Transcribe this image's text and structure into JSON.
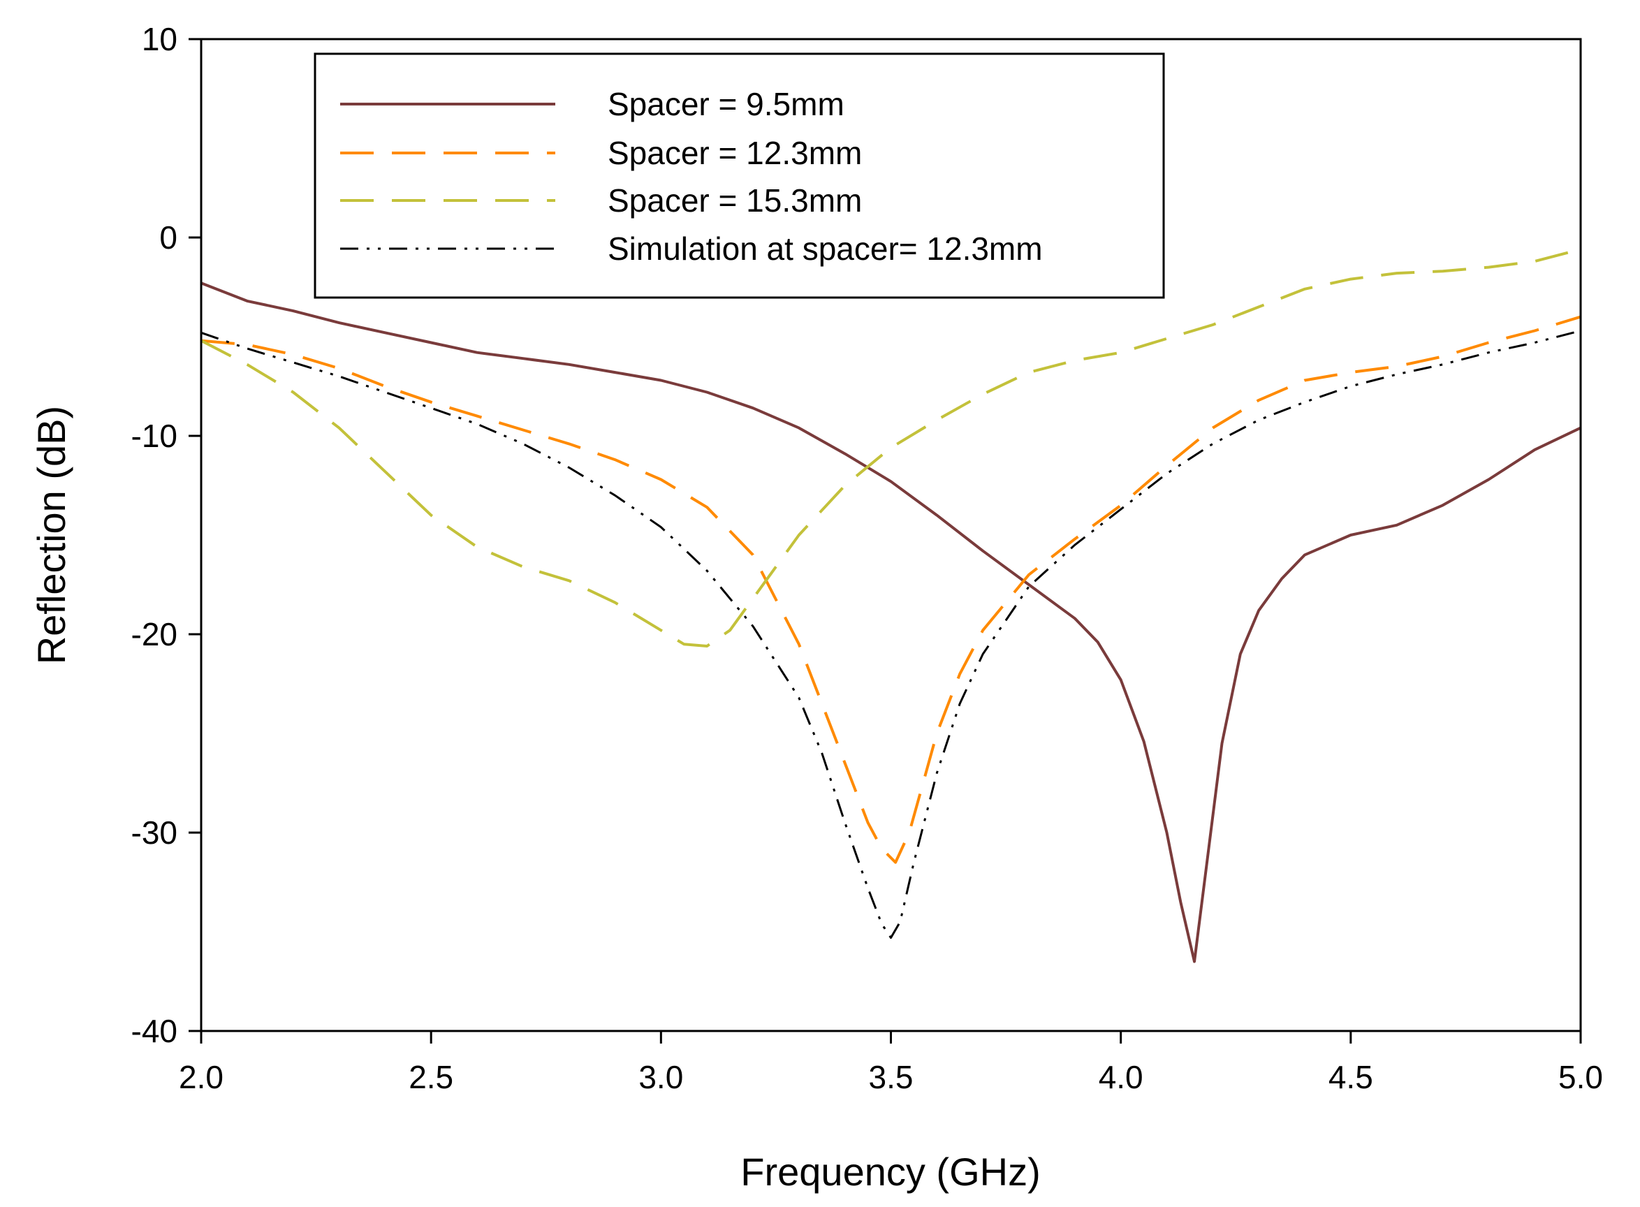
{
  "chart_data": {
    "type": "line",
    "title": "",
    "xlabel": "Frequency (GHz)",
    "ylabel": "Reflection (dB)",
    "xlim": [
      2.0,
      5.0
    ],
    "ylim": [
      -40,
      10
    ],
    "xticks": [
      2.0,
      2.5,
      3.0,
      3.5,
      4.0,
      4.5,
      5.0
    ],
    "xtick_labels": [
      "2.0",
      "2.5",
      "3.0",
      "3.5",
      "4.0",
      "4.5",
      "5.0"
    ],
    "yticks": [
      -40,
      -30,
      -20,
      -10,
      0,
      10
    ],
    "ytick_labels": [
      "-40",
      "-30",
      "-20",
      "-10",
      "0",
      "10"
    ],
    "grid": false,
    "legend_position": "top-center",
    "series": [
      {
        "name": "Spacer = 9.5mm",
        "color": "#7a3b3b",
        "style": "solid",
        "x": [
          2.0,
          2.1,
          2.2,
          2.3,
          2.4,
          2.5,
          2.6,
          2.7,
          2.8,
          2.9,
          3.0,
          3.1,
          3.2,
          3.3,
          3.4,
          3.5,
          3.6,
          3.7,
          3.8,
          3.9,
          3.95,
          4.0,
          4.05,
          4.1,
          4.13,
          4.16,
          4.19,
          4.22,
          4.26,
          4.3,
          4.35,
          4.4,
          4.5,
          4.6,
          4.7,
          4.8,
          4.9,
          5.0
        ],
        "y": [
          -2.3,
          -3.2,
          -3.7,
          -4.3,
          -4.8,
          -5.3,
          -5.8,
          -6.1,
          -6.4,
          -6.8,
          -7.2,
          -7.8,
          -8.6,
          -9.6,
          -10.9,
          -12.3,
          -14.0,
          -15.8,
          -17.5,
          -19.2,
          -20.4,
          -22.3,
          -25.4,
          -30.0,
          -33.5,
          -36.5,
          -31.0,
          -25.5,
          -21.0,
          -18.8,
          -17.2,
          -16.0,
          -15.0,
          -14.5,
          -13.5,
          -12.2,
          -10.7,
          -9.6
        ]
      },
      {
        "name": "Spacer = 12.3mm",
        "color": "#ff8a00",
        "style": "long-dash",
        "x": [
          2.0,
          2.1,
          2.2,
          2.3,
          2.4,
          2.5,
          2.6,
          2.7,
          2.8,
          2.9,
          3.0,
          3.1,
          3.2,
          3.3,
          3.35,
          3.4,
          3.45,
          3.48,
          3.51,
          3.54,
          3.57,
          3.6,
          3.65,
          3.7,
          3.8,
          3.9,
          4.0,
          4.1,
          4.2,
          4.3,
          4.4,
          4.5,
          4.6,
          4.7,
          4.8,
          4.9,
          5.0
        ],
        "y": [
          -5.2,
          -5.4,
          -5.9,
          -6.6,
          -7.5,
          -8.3,
          -9.0,
          -9.7,
          -10.4,
          -11.2,
          -12.2,
          -13.6,
          -16.0,
          -20.5,
          -23.5,
          -26.5,
          -29.5,
          -30.8,
          -31.5,
          -30.0,
          -27.5,
          -25.0,
          -22.0,
          -19.8,
          -17.0,
          -15.2,
          -13.5,
          -11.5,
          -9.6,
          -8.2,
          -7.2,
          -6.8,
          -6.5,
          -6.0,
          -5.3,
          -4.7,
          -4.0
        ]
      },
      {
        "name": "Spacer = 15.3mm",
        "color": "#c3c13a",
        "style": "long-dash",
        "x": [
          2.0,
          2.1,
          2.2,
          2.3,
          2.4,
          2.5,
          2.6,
          2.7,
          2.8,
          2.9,
          3.0,
          3.05,
          3.1,
          3.15,
          3.2,
          3.3,
          3.4,
          3.5,
          3.6,
          3.7,
          3.8,
          3.9,
          4.0,
          4.1,
          4.2,
          4.3,
          4.4,
          4.5,
          4.6,
          4.7,
          4.8,
          4.9,
          5.0
        ],
        "y": [
          -5.2,
          -6.4,
          -7.8,
          -9.6,
          -11.8,
          -14.0,
          -15.6,
          -16.6,
          -17.3,
          -18.4,
          -19.8,
          -20.5,
          -20.6,
          -19.8,
          -18.2,
          -15.0,
          -12.5,
          -10.6,
          -9.2,
          -7.9,
          -6.8,
          -6.2,
          -5.8,
          -5.1,
          -4.4,
          -3.5,
          -2.6,
          -2.1,
          -1.8,
          -1.7,
          -1.5,
          -1.2,
          -0.6
        ]
      },
      {
        "name": "Simulation at spacer= 12.3mm",
        "color": "#000000",
        "style": "dash-dot-dot",
        "x": [
          2.0,
          2.1,
          2.2,
          2.3,
          2.4,
          2.5,
          2.6,
          2.7,
          2.8,
          2.9,
          3.0,
          3.1,
          3.2,
          3.3,
          3.35,
          3.4,
          3.45,
          3.48,
          3.5,
          3.52,
          3.55,
          3.6,
          3.65,
          3.7,
          3.8,
          3.9,
          4.0,
          4.1,
          4.2,
          4.3,
          4.4,
          4.5,
          4.6,
          4.7,
          4.8,
          4.9,
          5.0
        ],
        "y": [
          -4.8,
          -5.6,
          -6.3,
          -7.0,
          -7.8,
          -8.6,
          -9.4,
          -10.4,
          -11.6,
          -13.0,
          -14.6,
          -16.8,
          -19.6,
          -23.2,
          -26.0,
          -29.5,
          -32.8,
          -34.6,
          -35.3,
          -34.5,
          -31.5,
          -27.0,
          -23.5,
          -21.0,
          -17.6,
          -15.5,
          -13.7,
          -11.9,
          -10.4,
          -9.2,
          -8.3,
          -7.5,
          -6.9,
          -6.4,
          -5.8,
          -5.3,
          -4.7
        ]
      }
    ]
  }
}
